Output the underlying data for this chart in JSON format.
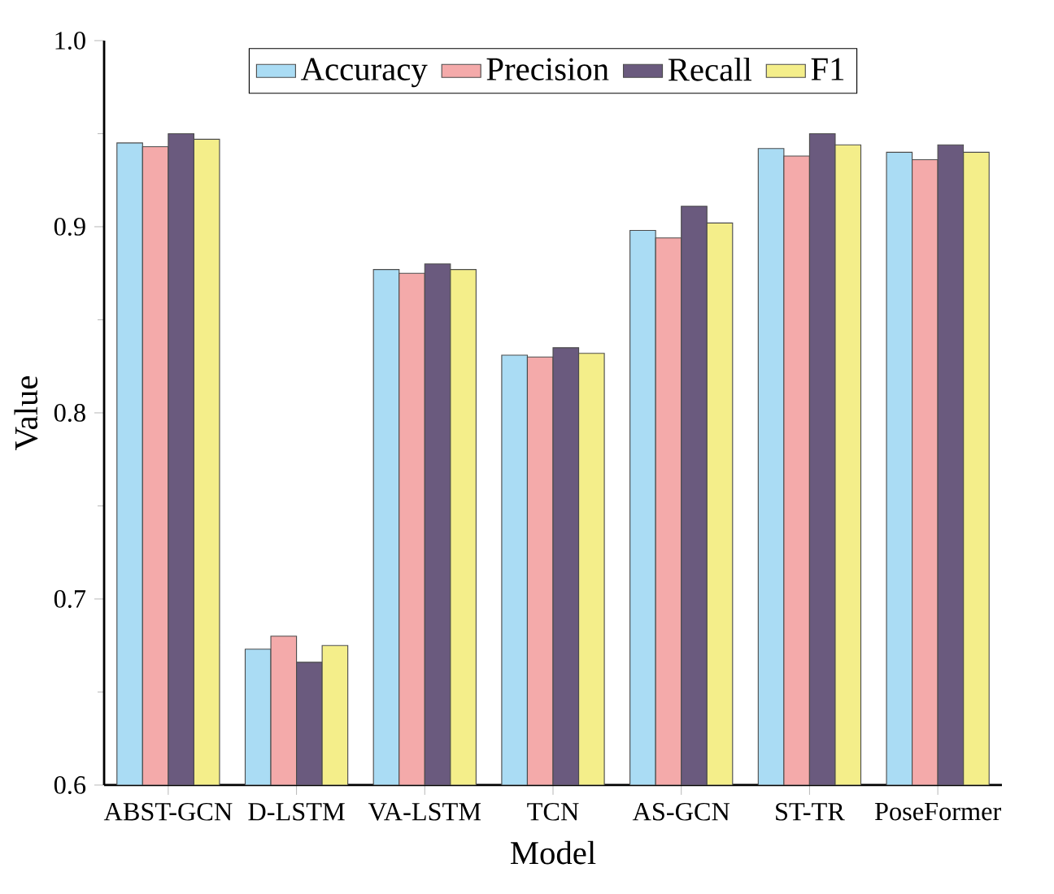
{
  "chart_data": {
    "type": "bar",
    "xlabel": "Model",
    "ylabel": "Value",
    "categories": [
      "ABST-GCN",
      "D-LSTM",
      "VA-LSTM",
      "TCN",
      "AS-GCN",
      "ST-TR",
      "PoseFormer"
    ],
    "series": [
      {
        "name": "Accuracy",
        "color": "#aadcf4",
        "values": [
          0.945,
          0.673,
          0.877,
          0.831,
          0.898,
          0.942,
          0.94
        ]
      },
      {
        "name": "Precision",
        "color": "#f4aaaa",
        "values": [
          0.943,
          0.68,
          0.875,
          0.83,
          0.894,
          0.938,
          0.936
        ]
      },
      {
        "name": "Recall",
        "color": "#6a5a7e",
        "values": [
          0.95,
          0.666,
          0.88,
          0.835,
          0.911,
          0.95,
          0.944
        ]
      },
      {
        "name": "F1",
        "color": "#f4ee8a",
        "values": [
          0.947,
          0.675,
          0.877,
          0.832,
          0.902,
          0.944,
          0.94
        ]
      }
    ],
    "ylim": [
      0.6,
      1.0
    ],
    "yticks": [
      0.6,
      0.7,
      0.8,
      0.9,
      {
        "value": 1.0,
        "label": "1.0"
      }
    ],
    "grid": false,
    "legend": "top"
  }
}
